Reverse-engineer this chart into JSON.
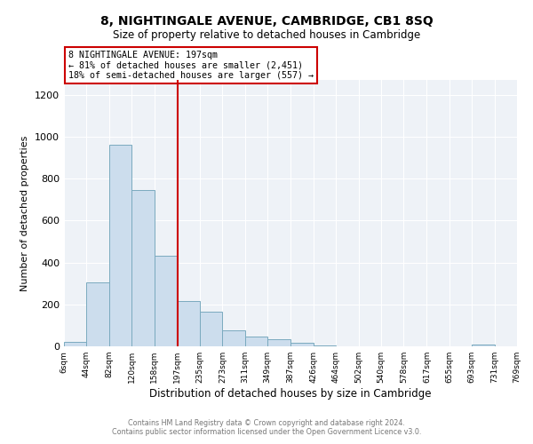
{
  "title": "8, NIGHTINGALE AVENUE, CAMBRIDGE, CB1 8SQ",
  "subtitle": "Size of property relative to detached houses in Cambridge",
  "xlabel": "Distribution of detached houses by size in Cambridge",
  "ylabel": "Number of detached properties",
  "bar_color": "#ccdded",
  "bar_edge_color": "#7aaabf",
  "vline_x": 197,
  "vline_color": "#cc0000",
  "annotation_title": "8 NIGHTINGALE AVENUE: 197sqm",
  "annotation_line1": "← 81% of detached houses are smaller (2,451)",
  "annotation_line2": "18% of semi-detached houses are larger (557) →",
  "annotation_box_color": "#cc0000",
  "footer_line1": "Contains HM Land Registry data © Crown copyright and database right 2024.",
  "footer_line2": "Contains public sector information licensed under the Open Government Licence v3.0.",
  "bin_edges": [
    6,
    44,
    82,
    120,
    158,
    197,
    235,
    273,
    311,
    349,
    387,
    426,
    464,
    502,
    540,
    578,
    617,
    655,
    693,
    731,
    769
  ],
  "bar_heights": [
    20,
    305,
    960,
    745,
    430,
    215,
    165,
    75,
    48,
    32,
    15,
    3,
    0,
    0,
    0,
    0,
    0,
    0,
    10,
    0
  ],
  "ylim": [
    0,
    1270
  ],
  "yticks": [
    0,
    200,
    400,
    600,
    800,
    1000,
    1200
  ],
  "background_color": "#eef2f7",
  "plot_background": "#ffffff",
  "grid_color": "#ffffff"
}
